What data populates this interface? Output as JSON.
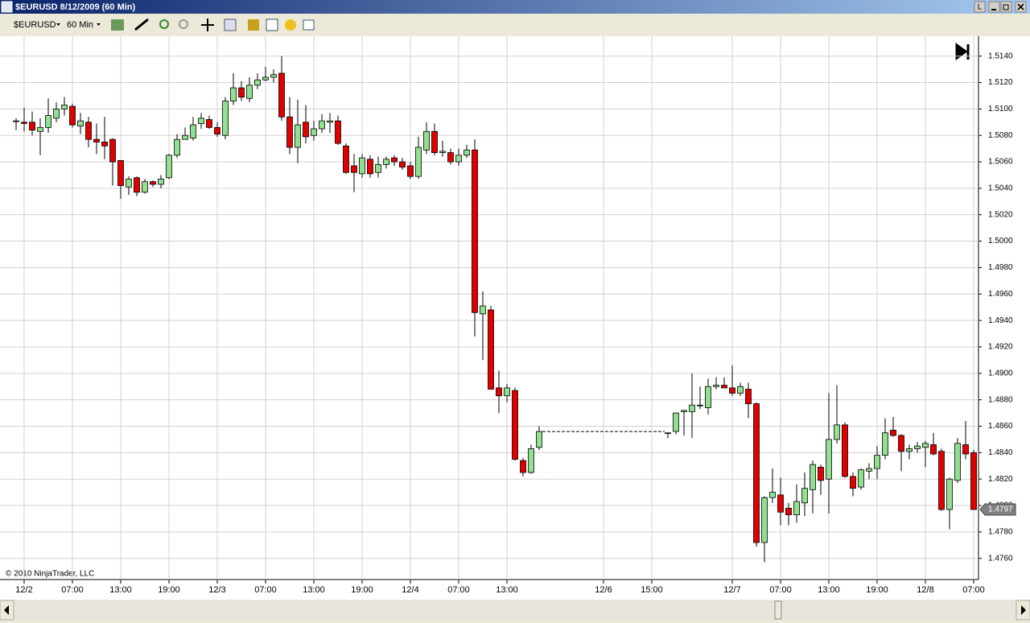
{
  "window": {
    "title": "$EURUSD  8/12/2009 (60 Min)",
    "button": "L"
  },
  "toolbar": {
    "instrument": "$EURUSD",
    "interval": "60 Min"
  },
  "chart_data": {
    "type": "candlestick",
    "copyright": "© 2010 NinjaTrader, LLC",
    "up_color": "#90e090",
    "down_color": "#e00000",
    "grid": true,
    "ylim": [
      1.4744,
      1.5152
    ],
    "yticks": [
      {
        "value": 1.514,
        "label": "1.5140"
      },
      {
        "value": 1.512,
        "label": "1.5120"
      },
      {
        "value": 1.51,
        "label": "1.5100"
      },
      {
        "value": 1.508,
        "label": "1.5080"
      },
      {
        "value": 1.506,
        "label": "1.5060"
      },
      {
        "value": 1.504,
        "label": "1.5040"
      },
      {
        "value": 1.502,
        "label": "1.5020"
      },
      {
        "value": 1.5,
        "label": "1.5000"
      },
      {
        "value": 1.498,
        "label": "1.4980"
      },
      {
        "value": 1.496,
        "label": "1.4960"
      },
      {
        "value": 1.494,
        "label": "1.4940"
      },
      {
        "value": 1.492,
        "label": "1.4920"
      },
      {
        "value": 1.49,
        "label": "1.4900"
      },
      {
        "value": 1.488,
        "label": "1.4880"
      },
      {
        "value": 1.486,
        "label": "1.4860"
      },
      {
        "value": 1.484,
        "label": "1.4840"
      },
      {
        "value": 1.482,
        "label": "1.4820"
      },
      {
        "value": 1.48,
        "label": "1.4800"
      },
      {
        "value": 1.478,
        "label": "1.4780"
      },
      {
        "value": 1.476,
        "label": "1.4760"
      }
    ],
    "last_price": 1.4797,
    "categories": [
      null,
      "12/2",
      null,
      null,
      null,
      null,
      null,
      "07:00",
      null,
      null,
      null,
      null,
      null,
      "13:00",
      null,
      null,
      null,
      null,
      null,
      "19:00",
      null,
      null,
      null,
      null,
      null,
      "12/3",
      null,
      null,
      null,
      null,
      null,
      "07:00",
      null,
      null,
      null,
      null,
      null,
      "13:00",
      null,
      null,
      null,
      null,
      null,
      "19:00",
      null,
      null,
      null,
      null,
      null,
      "12/4",
      null,
      null,
      null,
      null,
      null,
      "07:00",
      null,
      null,
      null,
      null,
      null,
      "13:00",
      null,
      null,
      null,
      null,
      null,
      null,
      null,
      null,
      null,
      null,
      null,
      "12/6",
      null,
      null,
      null,
      null,
      null,
      "15:00",
      null,
      null,
      null,
      null,
      null,
      null,
      null,
      null,
      null,
      "12/7",
      null,
      null,
      null,
      null,
      null,
      "07:00",
      null,
      null,
      null,
      null,
      null,
      "13:00",
      null,
      null,
      null,
      null,
      null,
      "19:00",
      null,
      null,
      null,
      null,
      null,
      "12/8",
      null,
      null,
      null,
      null,
      null,
      "07:00"
    ],
    "open": [
      1.5091,
      1.509,
      1.509,
      1.5083,
      1.5086,
      1.5093,
      1.51,
      1.5102,
      1.5087,
      1.509,
      1.5077,
      1.5075,
      1.5077,
      1.5061,
      1.5041,
      1.5048,
      1.5037,
      1.5045,
      1.5043,
      1.5048,
      1.5065,
      1.5077,
      1.5078,
      1.5089,
      1.5092,
      1.5086,
      1.508,
      1.5106,
      1.5116,
      1.5108,
      1.5118,
      1.5122,
      1.5124,
      1.5127,
      1.5094,
      1.5071,
      1.509,
      1.508,
      1.5085,
      1.509,
      1.5091,
      1.5072,
      1.5057,
      1.5051,
      1.5062,
      1.5052,
      1.5058,
      1.5063,
      1.506,
      1.5057,
      1.5049,
      1.5069,
      1.5083,
      1.5067,
      1.5067,
      1.506,
      1.5065,
      1.5069,
      1.4945,
      1.4948,
      1.4889,
      1.4883,
      1.4887,
      1.4834,
      1.4825,
      1.4844,
      null,
      null,
      null,
      null,
      null,
      null,
      null,
      null,
      null,
      null,
      null,
      null,
      null,
      null,
      null,
      1.4855,
      1.4856,
      1.4871,
      1.4871,
      1.4876,
      1.4874,
      1.489,
      1.4891,
      1.4889,
      1.4885,
      1.4888,
      1.4877,
      1.4772,
      1.4806,
      1.4808,
      1.4798,
      1.4793,
      1.4802,
      1.4812,
      1.4829,
      1.482,
      1.485,
      1.4861,
      1.4822,
      1.4814,
      1.4826,
      1.4828,
      1.4838,
      1.4857,
      1.4853,
      1.4841,
      1.4843,
      1.4844,
      1.4846,
      1.4841,
      1.4797,
      1.4819,
      1.4846,
      1.484
    ],
    "high": [
      1.5093,
      1.5101,
      1.5098,
      1.5093,
      1.5108,
      1.5105,
      1.5109,
      1.5104,
      1.5097,
      1.5094,
      1.5089,
      1.5094,
      1.5078,
      1.5061,
      1.5049,
      1.5049,
      1.5047,
      1.5046,
      1.505,
      1.5066,
      1.5081,
      1.5086,
      1.5094,
      1.5097,
      1.5095,
      1.509,
      1.5109,
      1.5127,
      1.5121,
      1.5124,
      1.5127,
      1.5132,
      1.513,
      1.514,
      1.5109,
      1.5107,
      1.5103,
      1.5091,
      1.5096,
      1.5097,
      1.5095,
      1.5074,
      1.5066,
      1.5066,
      1.5065,
      1.5064,
      1.5064,
      1.5065,
      1.5063,
      1.506,
      1.5079,
      1.509,
      1.5089,
      1.5076,
      1.507,
      1.507,
      1.5073,
      1.5077,
      1.4962,
      1.4951,
      1.4902,
      1.4892,
      1.4889,
      1.4836,
      1.4846,
      1.486,
      null,
      null,
      null,
      null,
      null,
      null,
      null,
      null,
      null,
      null,
      null,
      null,
      null,
      null,
      null,
      1.4855,
      1.487,
      1.4872,
      1.49,
      1.489,
      1.4896,
      1.4897,
      1.4897,
      1.4906,
      1.4893,
      1.4893,
      1.4878,
      1.4807,
      1.4828,
      1.4821,
      1.4802,
      1.4816,
      1.4825,
      1.4834,
      1.4831,
      1.4885,
      1.4891,
      1.4863,
      1.4825,
      1.4828,
      1.4832,
      1.4845,
      1.4866,
      1.4867,
      1.4854,
      1.4846,
      1.4848,
      1.4849,
      1.4855,
      1.4843,
      1.4821,
      1.4851,
      1.4864,
      1.4842
    ],
    "low": [
      1.5084,
      1.5083,
      1.508,
      1.5065,
      1.5082,
      1.509,
      1.5095,
      1.5086,
      1.5081,
      1.5071,
      1.5066,
      1.5062,
      1.5042,
      1.5032,
      1.5035,
      1.5034,
      1.5036,
      1.5041,
      1.504,
      1.5047,
      1.5063,
      1.5077,
      1.5076,
      1.5085,
      1.5085,
      1.5079,
      1.5077,
      1.5103,
      1.5106,
      1.5105,
      1.5115,
      1.5121,
      1.512,
      1.5091,
      1.5066,
      1.5059,
      1.5074,
      1.5076,
      1.5082,
      1.5082,
      1.5073,
      1.5051,
      1.5037,
      1.5048,
      1.5048,
      1.5048,
      1.5055,
      1.5057,
      1.5054,
      1.5047,
      1.5047,
      1.5066,
      1.5065,
      1.5064,
      1.5058,
      1.5057,
      1.5063,
      1.4928,
      1.491,
      1.4888,
      1.487,
      1.4878,
      1.4834,
      1.4822,
      1.4824,
      1.4842,
      null,
      null,
      null,
      null,
      null,
      null,
      null,
      null,
      null,
      null,
      null,
      null,
      null,
      null,
      null,
      1.4851,
      1.4854,
      1.4853,
      1.4851,
      1.4873,
      1.4869,
      1.4888,
      1.4889,
      1.4883,
      1.4883,
      1.4866,
      1.4769,
      1.4757,
      1.4802,
      1.4785,
      1.4785,
      1.4787,
      1.4792,
      1.4794,
      1.4808,
      1.4794,
      1.4847,
      1.4821,
      1.4807,
      1.4812,
      1.482,
      1.482,
      1.4835,
      1.4852,
      1.4826,
      1.4835,
      1.484,
      1.4829,
      1.4838,
      1.4796,
      1.4782,
      1.4817,
      1.4835,
      1.4797
    ],
    "close": [
      1.5091,
      1.5089,
      1.5084,
      1.5086,
      1.5095,
      1.51,
      1.5103,
      1.5088,
      1.5091,
      1.5077,
      1.5075,
      1.5072,
      1.506,
      1.5042,
      1.5047,
      1.5037,
      1.5045,
      1.5043,
      1.5047,
      1.5065,
      1.5077,
      1.508,
      1.5088,
      1.5093,
      1.5086,
      1.5081,
      1.5106,
      1.5116,
      1.5109,
      1.5118,
      1.5122,
      1.5124,
      1.5126,
      1.5094,
      1.5071,
      1.5088,
      1.5079,
      1.5085,
      1.5091,
      1.5091,
      1.5074,
      1.5052,
      1.5052,
      1.5063,
      1.5051,
      1.5058,
      1.5062,
      1.506,
      1.5056,
      1.5049,
      1.5071,
      1.5083,
      1.5067,
      1.5068,
      1.506,
      1.5065,
      1.5069,
      1.4946,
      1.4951,
      1.4888,
      1.4883,
      1.4889,
      1.4835,
      1.4825,
      1.4843,
      1.4856,
      null,
      null,
      null,
      null,
      null,
      null,
      null,
      null,
      null,
      null,
      null,
      null,
      null,
      null,
      null,
      1.4855,
      1.487,
      1.4872,
      1.4876,
      1.4876,
      1.489,
      1.4891,
      1.4889,
      1.4885,
      1.489,
      1.4877,
      1.4772,
      1.4806,
      1.481,
      1.4795,
      1.4793,
      1.4803,
      1.4813,
      1.4831,
      1.4819,
      1.485,
      1.4861,
      1.4822,
      1.4813,
      1.4827,
      1.4828,
      1.4838,
      1.4855,
      1.4853,
      1.4841,
      1.4843,
      1.4845,
      1.4847,
      1.4839,
      1.4797,
      1.482,
      1.4847,
      1.4839,
      1.4797
    ]
  }
}
